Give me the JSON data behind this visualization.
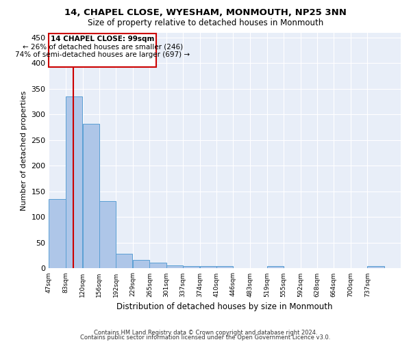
{
  "title1": "14, CHAPEL CLOSE, WYESHAM, MONMOUTH, NP25 3NN",
  "title2": "Size of property relative to detached houses in Monmouth",
  "xlabel": "Distribution of detached houses by size in Monmouth",
  "ylabel": "Number of detached properties",
  "footer1": "Contains HM Land Registry data © Crown copyright and database right 2024.",
  "footer2": "Contains public sector information licensed under the Open Government Licence v3.0.",
  "annotation_title": "14 CHAPEL CLOSE: 99sqm",
  "annotation_line1": "← 26% of detached houses are smaller (246)",
  "annotation_line2": "74% of semi-detached houses are larger (697) →",
  "property_size": 99,
  "bar_edges": [
    47,
    83,
    120,
    156,
    192,
    229,
    265,
    301,
    337,
    374,
    410,
    446,
    483,
    519,
    555,
    592,
    628,
    664,
    700,
    737,
    773
  ],
  "bar_heights": [
    135,
    335,
    282,
    131,
    29,
    16,
    11,
    6,
    5,
    5,
    4,
    0,
    0,
    5,
    0,
    0,
    0,
    0,
    0,
    5
  ],
  "bar_color": "#aec6e8",
  "bar_edge_color": "#5a9fd4",
  "line_color": "#cc0000",
  "bg_color": "#e8eef8",
  "ylim": [
    0,
    460
  ],
  "yticks": [
    0,
    50,
    100,
    150,
    200,
    250,
    300,
    350,
    400,
    450
  ]
}
